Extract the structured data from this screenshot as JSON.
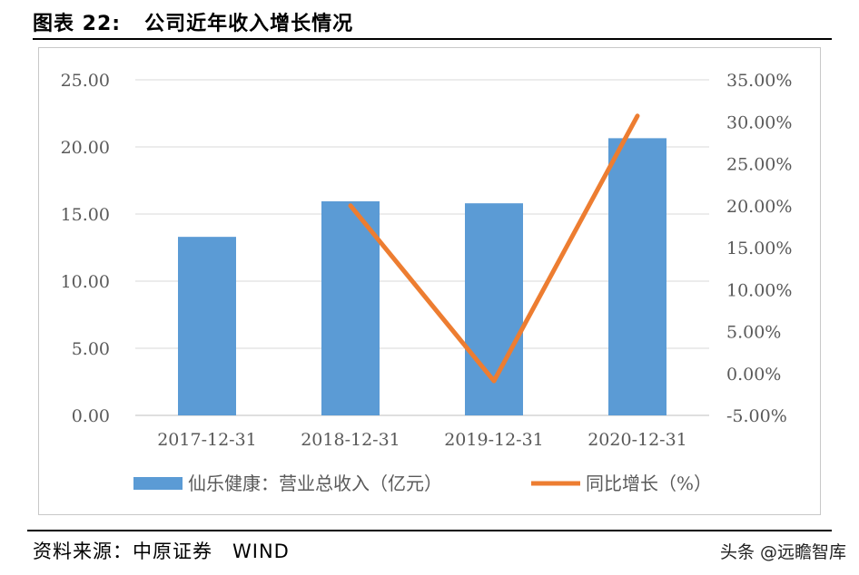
{
  "header": {
    "figure_no": "图表 22:",
    "title": "公司近年收入增长情况"
  },
  "footer": {
    "source": "资料来源：中原证券　WIND",
    "watermark": "头条 @远瞻智库"
  },
  "colors": {
    "bar": "#5b9bd5",
    "line": "#ed7d31",
    "grid": "#d9d9d9",
    "axis": "#bfbfbf",
    "text": "#595959"
  },
  "chart_data": {
    "type": "bar",
    "categories": [
      "2017-12-31",
      "2018-12-31",
      "2019-12-31",
      "2020-12-31"
    ],
    "series": [
      {
        "name": "仙乐健康：营业总收入（亿元）",
        "type": "bar",
        "axis": "left",
        "values": [
          13.3,
          15.95,
          15.8,
          20.65
        ]
      },
      {
        "name": "同比增长（%）",
        "type": "line",
        "axis": "right",
        "values": [
          null,
          20.0,
          -0.9,
          30.7
        ]
      }
    ],
    "y_left": {
      "min": 0,
      "max": 25,
      "step": 5,
      "ticks": [
        "0.00",
        "5.00",
        "10.00",
        "15.00",
        "20.00",
        "25.00"
      ]
    },
    "y_right": {
      "min": -5,
      "max": 35,
      "step": 5,
      "ticks": [
        "-5.00%",
        "0.00%",
        "5.00%",
        "10.00%",
        "15.00%",
        "20.00%",
        "25.00%",
        "30.00%",
        "35.00%"
      ]
    },
    "grid": true,
    "legend_position": "bottom"
  }
}
